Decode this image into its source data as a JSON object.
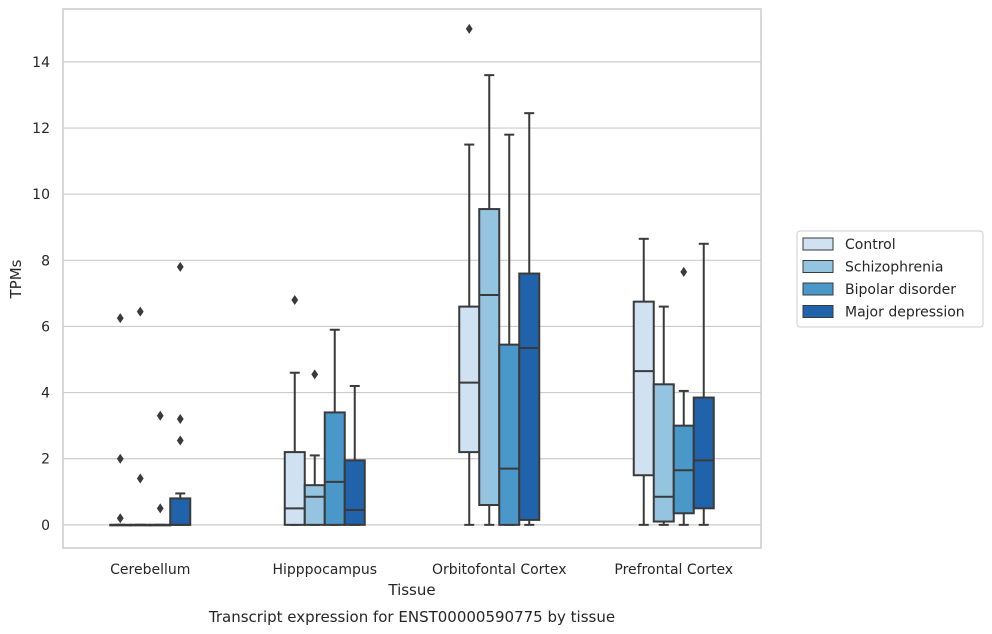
{
  "chart_data": {
    "type": "box",
    "title": "Transcript expression for ENST00000590775 by tissue",
    "xlabel": "Tissue",
    "ylabel": "TPMs",
    "ylim": [
      -0.7,
      15.6
    ],
    "yticks": [
      0,
      2,
      4,
      6,
      8,
      10,
      12,
      14
    ],
    "grid": "horizontal",
    "legend_position": "right",
    "categories": [
      "Cerebellum",
      "Hipppocampus",
      "Orbitofontal Cortex",
      "Prefrontal Cortex"
    ],
    "series": [
      {
        "name": "Control",
        "color": "#d0e1f2",
        "boxes": [
          {
            "min": 0,
            "q1": 0,
            "median": 0,
            "q3": 0,
            "max": 0,
            "outliers": [
              6.25,
              2.0,
              0.2
            ]
          },
          {
            "min": 0,
            "q1": 0,
            "median": 0.5,
            "q3": 2.2,
            "max": 4.6,
            "outliers": [
              6.8
            ]
          },
          {
            "min": 0,
            "q1": 2.2,
            "median": 4.3,
            "q3": 6.6,
            "max": 11.5,
            "outliers": [
              15.0
            ]
          },
          {
            "min": 0,
            "q1": 1.5,
            "median": 4.65,
            "q3": 6.75,
            "max": 8.65,
            "outliers": []
          }
        ]
      },
      {
        "name": "Schizophrenia",
        "color": "#94c4df",
        "boxes": [
          {
            "min": 0,
            "q1": 0,
            "median": 0,
            "q3": 0,
            "max": 0,
            "outliers": [
              6.45,
              1.4
            ]
          },
          {
            "min": 0,
            "q1": 0,
            "median": 0.85,
            "q3": 1.2,
            "max": 2.1,
            "outliers": [
              4.55
            ]
          },
          {
            "min": 0,
            "q1": 0.6,
            "median": 6.95,
            "q3": 9.55,
            "max": 13.6,
            "outliers": []
          },
          {
            "min": 0,
            "q1": 0.1,
            "median": 0.85,
            "q3": 4.25,
            "max": 6.6,
            "outliers": []
          }
        ]
      },
      {
        "name": "Bipolar disorder",
        "color": "#4a98c9",
        "boxes": [
          {
            "min": 0,
            "q1": 0,
            "median": 0,
            "q3": 0,
            "max": 0,
            "outliers": [
              3.3,
              0.5
            ]
          },
          {
            "min": 0,
            "q1": 0,
            "median": 1.3,
            "q3": 3.4,
            "max": 5.9,
            "outliers": []
          },
          {
            "min": 0,
            "q1": 0,
            "median": 1.7,
            "q3": 5.45,
            "max": 11.8,
            "outliers": []
          },
          {
            "min": 0,
            "q1": 0.35,
            "median": 1.65,
            "q3": 3.0,
            "max": 4.05,
            "outliers": [
              7.65
            ]
          }
        ]
      },
      {
        "name": "Major depression",
        "color": "#2163aa",
        "boxes": [
          {
            "min": 0,
            "q1": 0,
            "median": 0,
            "q3": 0.8,
            "max": 0.95,
            "outliers": [
              7.8,
              3.2,
              2.55
            ]
          },
          {
            "min": 0,
            "q1": 0,
            "median": 0.45,
            "q3": 1.95,
            "max": 4.2,
            "outliers": []
          },
          {
            "min": 0,
            "q1": 0.15,
            "median": 5.35,
            "q3": 7.6,
            "max": 12.45,
            "outliers": []
          },
          {
            "min": 0,
            "q1": 0.5,
            "median": 1.95,
            "q3": 3.85,
            "max": 8.5,
            "outliers": []
          }
        ]
      }
    ]
  }
}
